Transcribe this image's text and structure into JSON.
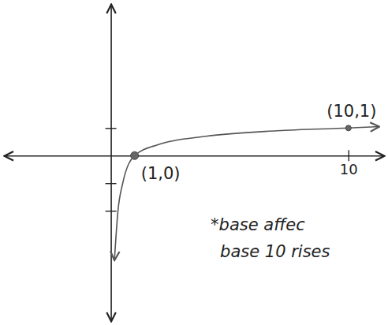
{
  "chart_data": {
    "type": "line",
    "x": [
      0.15,
      0.3,
      0.5,
      1,
      2,
      4,
      7,
      10,
      11.3
    ],
    "values": [
      -3.8,
      -2,
      -1,
      0,
      0.4,
      0.7,
      0.9,
      1,
      1.05
    ],
    "color": "#555555",
    "xlim": [
      -4.5,
      11.5
    ],
    "ylim": [
      -6,
      5.5
    ],
    "xticks": [
      10
    ],
    "yticks": [
      1,
      -1,
      -2
    ],
    "tick_labels": "x",
    "annotations": [
      {
        "text": "(1,0)",
        "x": 1,
        "y": 0
      },
      {
        "text": "(10,1)",
        "x": 10,
        "y": 1
      }
    ],
    "notes": [
      "*base affec",
      "base 10 rises"
    ]
  }
}
